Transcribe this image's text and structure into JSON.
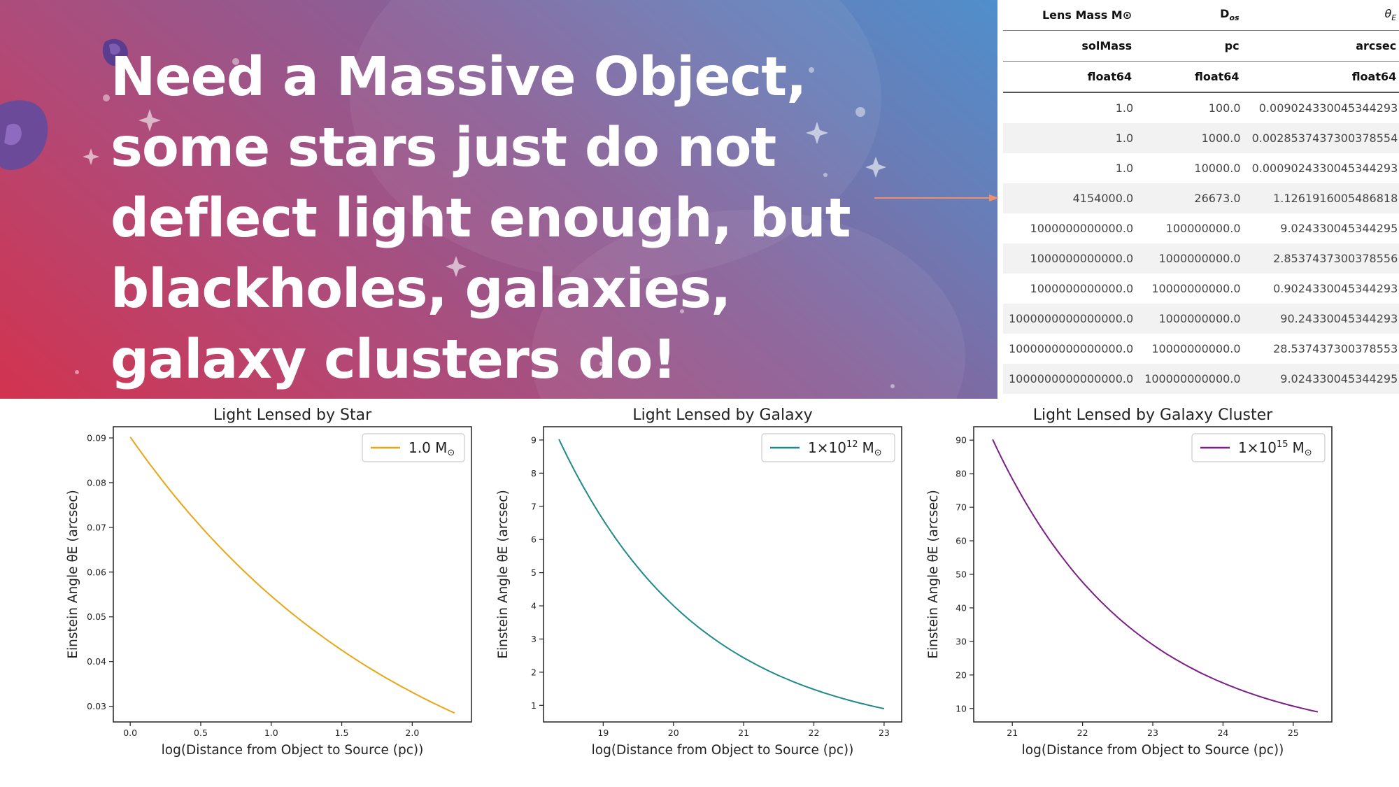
{
  "headline": "Need a Massive Object, some stars just do not deflect light enough, but blackholes, galaxies, galaxy clusters do!",
  "table": {
    "columns": [
      {
        "name": "Lens Mass M⊙",
        "unit": "solMass",
        "dtype": "float64"
      },
      {
        "name": "Dₒₛ",
        "unit": "pc",
        "dtype": "float64"
      },
      {
        "name": "θE",
        "unit": "arcsec",
        "dtype": "float64"
      }
    ],
    "rows": [
      [
        "1.0",
        "100.0",
        "0.009024330045344293"
      ],
      [
        "1.0",
        "1000.0",
        "0.0028537437300378554"
      ],
      [
        "1.0",
        "10000.0",
        "0.0009024330045344293"
      ],
      [
        "4154000.0",
        "26673.0",
        "1.1261916005486818"
      ],
      [
        "1000000000000.0",
        "100000000.0",
        "9.024330045344295"
      ],
      [
        "1000000000000.0",
        "1000000000.0",
        "2.8537437300378556"
      ],
      [
        "1000000000000.0",
        "10000000000.0",
        "0.9024330045344293"
      ],
      [
        "1000000000000000.0",
        "1000000000.0",
        "90.24330045344293"
      ],
      [
        "1000000000000000.0",
        "10000000000.0",
        "28.537437300378553"
      ],
      [
        "1000000000000000.0",
        "100000000000.0",
        "9.024330045344295"
      ]
    ]
  },
  "colors": {
    "star": "#e8a614",
    "galaxy": "#1f8a8a",
    "cluster": "#7b1f86",
    "banner_start": "#d2334f",
    "banner_end": "#4f8fcc",
    "arrow": "#f0906a"
  },
  "chart_data": [
    {
      "type": "line",
      "title": "Light Lensed by Star",
      "xlabel": "log(Distance from Object to Source (pc))",
      "ylabel": "Einstein Angle θE (arcsec)",
      "xlim": [
        -0.12,
        2.42
      ],
      "ylim": [
        0.0265,
        0.0925
      ],
      "xticks": [
        0.0,
        0.5,
        1.0,
        1.5,
        2.0
      ],
      "xtick_labels": [
        "0.0",
        "0.5",
        "1.0",
        "1.5",
        "2.0"
      ],
      "yticks": [
        0.03,
        0.04,
        0.05,
        0.06,
        0.07,
        0.08,
        0.09
      ],
      "ytick_labels": [
        "0.03",
        "0.04",
        "0.05",
        "0.06",
        "0.07",
        "0.08",
        "0.09"
      ],
      "legend_position": "top-right",
      "series": [
        {
          "name": "1.0 M⊙",
          "legend": {
            "pre": "1.0 M",
            "sup": ""
          },
          "color": "#e8a614",
          "x_start": 0.0,
          "x_end": 2.3,
          "y_start": 0.0902,
          "y_end": 0.0285
        }
      ]
    },
    {
      "type": "line",
      "title": "Light Lensed by Galaxy",
      "xlabel": "log(Distance from Object to Source (pc))",
      "ylabel": "Einstein Angle θE (arcsec)",
      "xlim": [
        18.15,
        23.25
      ],
      "ylim": [
        0.5,
        9.4
      ],
      "xticks": [
        19,
        20,
        21,
        22,
        23
      ],
      "xtick_labels": [
        "19",
        "20",
        "21",
        "22",
        "23"
      ],
      "yticks": [
        1,
        2,
        3,
        4,
        5,
        6,
        7,
        8,
        9
      ],
      "ytick_labels": [
        "1",
        "2",
        "3",
        "4",
        "5",
        "6",
        "7",
        "8",
        "9"
      ],
      "legend_position": "top-right",
      "series": [
        {
          "name": "1×10^12 M⊙",
          "legend": {
            "pre": "1×10",
            "sup": "12"
          },
          "color": "#1f8a8a",
          "x_start": 18.37,
          "x_end": 23.0,
          "y_start": 9.02,
          "y_end": 0.9
        }
      ]
    },
    {
      "type": "line",
      "title": "Light Lensed by Galaxy Cluster",
      "xlabel": "log(Distance from Object to Source (pc))",
      "ylabel": "Einstein Angle θE (arcsec)",
      "xlim": [
        20.45,
        25.55
      ],
      "ylim": [
        6,
        94
      ],
      "xticks": [
        21,
        22,
        23,
        24,
        25
      ],
      "xtick_labels": [
        "21",
        "22",
        "23",
        "24",
        "25"
      ],
      "yticks": [
        10,
        20,
        30,
        40,
        50,
        60,
        70,
        80,
        90
      ],
      "ytick_labels": [
        "10",
        "20",
        "30",
        "40",
        "50",
        "60",
        "70",
        "80",
        "90"
      ],
      "legend_position": "top-right",
      "series": [
        {
          "name": "1×10^15 M⊙",
          "legend": {
            "pre": "1×10",
            "sup": "15"
          },
          "color": "#7b1f86",
          "x_start": 20.72,
          "x_end": 25.35,
          "y_start": 90.2,
          "y_end": 9.0
        }
      ]
    }
  ]
}
